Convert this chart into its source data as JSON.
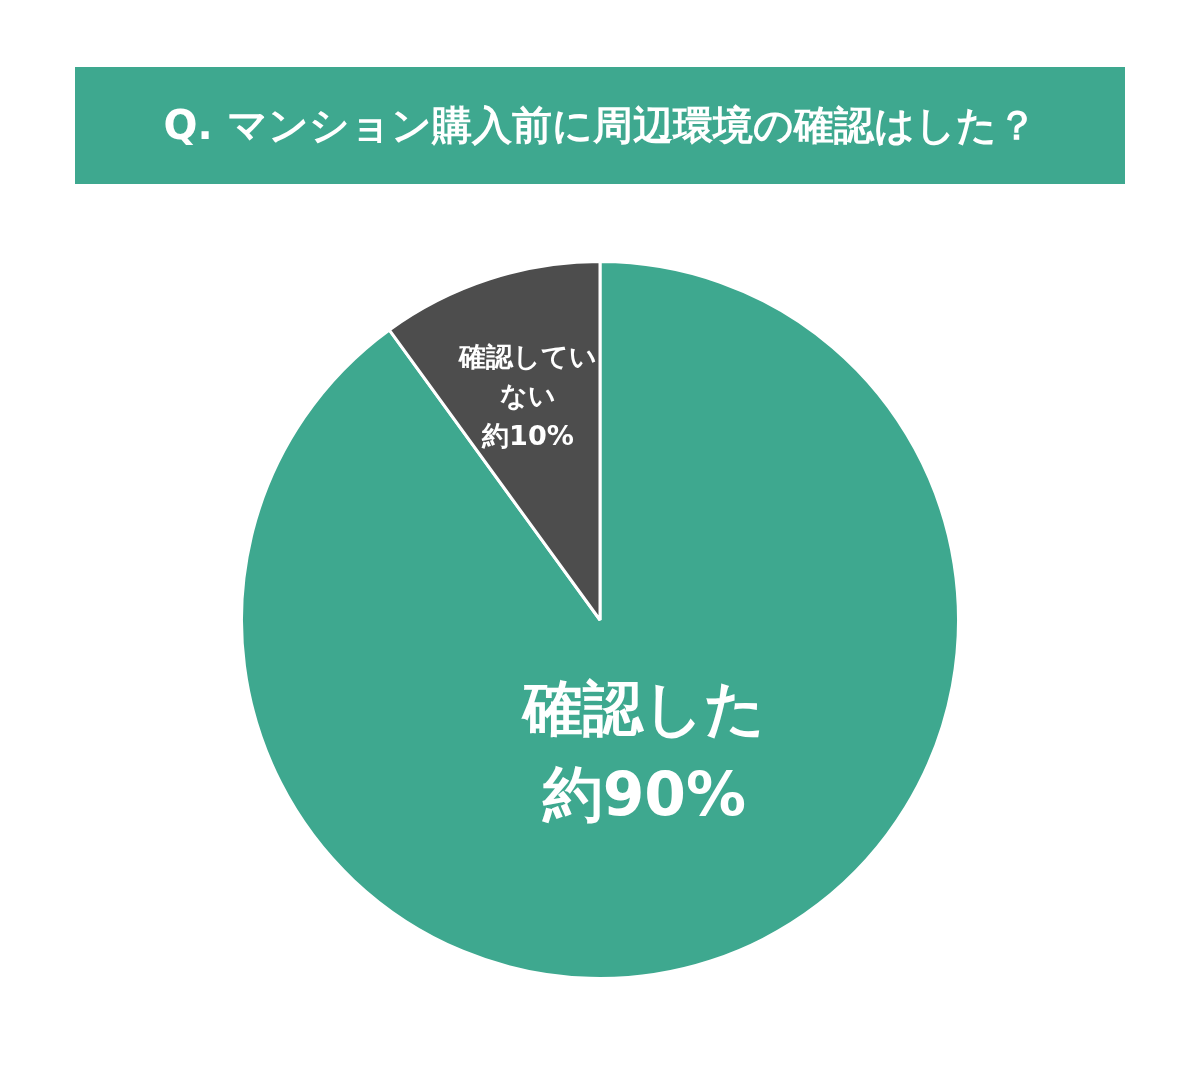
{
  "chart_data": {
    "type": "pie",
    "title": "Q. マンション購入前に周辺環境の確認はした？",
    "categories": [
      "確認した",
      "確認していない"
    ],
    "values": [
      90,
      10
    ],
    "value_labels": [
      "約90%",
      "約10%"
    ],
    "colors": [
      "#3ea88f",
      "#4d4d4d"
    ],
    "legend": false
  }
}
